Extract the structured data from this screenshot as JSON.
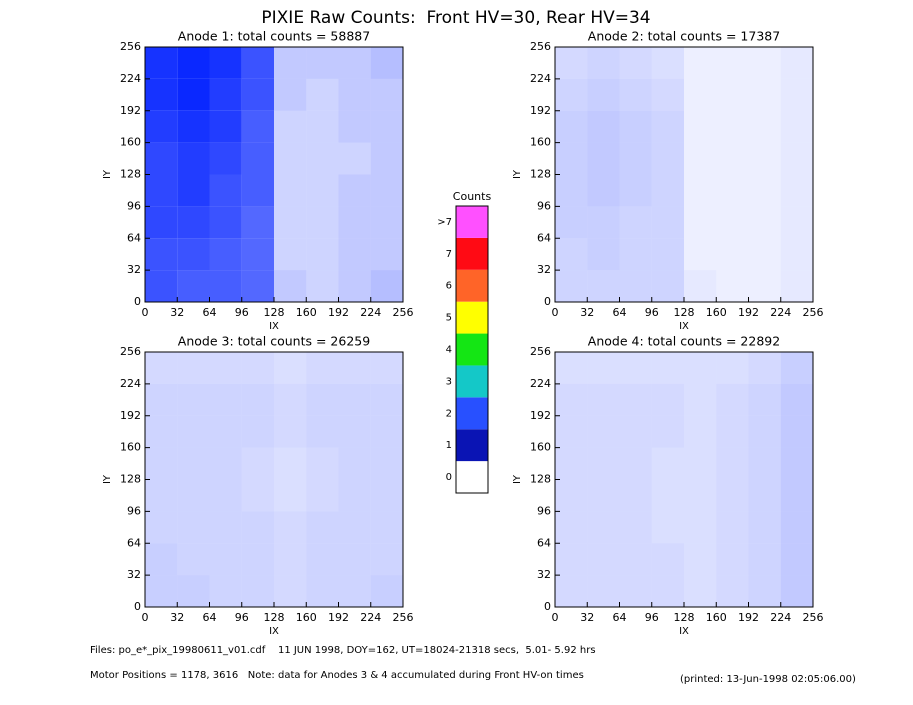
{
  "title": "PIXIE Raw Counts:  Front HV=30, Rear HV=34",
  "chart_data": [
    {
      "type": "heatmap",
      "title": "Anode 1: total counts = 58887",
      "xlabel": "IX",
      "ylabel": "IY",
      "xlim": [
        0,
        256
      ],
      "ylim": [
        0,
        256
      ],
      "xticks": [
        0,
        32,
        64,
        96,
        128,
        160,
        192,
        224,
        256
      ],
      "yticks": [
        0,
        32,
        64,
        96,
        128,
        160,
        192,
        224,
        256
      ],
      "color": "#0a28ff",
      "values": [
        [
          1.6,
          1.5,
          1.5,
          1.4,
          0.5,
          0.4,
          0.5,
          0.6
        ],
        [
          1.6,
          1.6,
          1.5,
          1.4,
          0.4,
          0.4,
          0.5,
          0.5
        ],
        [
          1.7,
          1.7,
          1.6,
          1.4,
          0.4,
          0.4,
          0.5,
          0.5
        ],
        [
          1.7,
          1.8,
          1.6,
          1.5,
          0.4,
          0.4,
          0.5,
          0.5
        ],
        [
          1.7,
          1.8,
          1.7,
          1.5,
          0.4,
          0.4,
          0.4,
          0.5
        ],
        [
          1.8,
          1.9,
          1.8,
          1.5,
          0.4,
          0.4,
          0.5,
          0.5
        ],
        [
          1.9,
          2.0,
          1.8,
          1.6,
          0.5,
          0.4,
          0.5,
          0.5
        ],
        [
          1.9,
          2.0,
          1.9,
          1.6,
          0.5,
          0.5,
          0.5,
          0.6
        ]
      ]
    },
    {
      "type": "heatmap",
      "title": "Anode 2: total counts = 17387",
      "xlabel": "IX",
      "ylabel": "IY",
      "xlim": [
        0,
        256
      ],
      "ylim": [
        0,
        256
      ],
      "xticks": [
        0,
        32,
        64,
        96,
        128,
        160,
        192,
        224,
        256
      ],
      "yticks": [
        0,
        32,
        64,
        96,
        128,
        160,
        192,
        224,
        256
      ],
      "color": "#0a28ff",
      "values": [
        [
          0.4,
          0.4,
          0.4,
          0.4,
          0.2,
          0.15,
          0.15,
          0.2
        ],
        [
          0.4,
          0.45,
          0.4,
          0.4,
          0.15,
          0.15,
          0.15,
          0.2
        ],
        [
          0.45,
          0.45,
          0.4,
          0.4,
          0.15,
          0.15,
          0.15,
          0.2
        ],
        [
          0.45,
          0.5,
          0.45,
          0.4,
          0.15,
          0.15,
          0.15,
          0.2
        ],
        [
          0.45,
          0.5,
          0.45,
          0.4,
          0.15,
          0.15,
          0.15,
          0.2
        ],
        [
          0.45,
          0.5,
          0.45,
          0.4,
          0.15,
          0.15,
          0.15,
          0.2
        ],
        [
          0.4,
          0.45,
          0.4,
          0.35,
          0.15,
          0.15,
          0.15,
          0.2
        ],
        [
          0.35,
          0.4,
          0.35,
          0.3,
          0.15,
          0.15,
          0.15,
          0.2
        ]
      ]
    },
    {
      "type": "heatmap",
      "title": "Anode 3: total counts = 26259",
      "xlabel": "IX",
      "ylabel": "IY",
      "xlim": [
        0,
        256
      ],
      "ylim": [
        0,
        256
      ],
      "xticks": [
        0,
        32,
        64,
        96,
        128,
        160,
        192,
        224,
        256
      ],
      "yticks": [
        0,
        32,
        64,
        96,
        128,
        160,
        192,
        224,
        256
      ],
      "color": "#0a28ff",
      "values": [
        [
          0.45,
          0.45,
          0.4,
          0.4,
          0.35,
          0.4,
          0.4,
          0.45
        ],
        [
          0.45,
          0.4,
          0.4,
          0.4,
          0.35,
          0.4,
          0.4,
          0.4
        ],
        [
          0.4,
          0.4,
          0.4,
          0.4,
          0.35,
          0.4,
          0.4,
          0.4
        ],
        [
          0.4,
          0.4,
          0.4,
          0.35,
          0.3,
          0.35,
          0.4,
          0.4
        ],
        [
          0.4,
          0.4,
          0.4,
          0.35,
          0.3,
          0.35,
          0.4,
          0.4
        ],
        [
          0.4,
          0.4,
          0.4,
          0.4,
          0.35,
          0.4,
          0.4,
          0.4
        ],
        [
          0.4,
          0.4,
          0.4,
          0.4,
          0.35,
          0.4,
          0.4,
          0.4
        ],
        [
          0.35,
          0.35,
          0.35,
          0.35,
          0.3,
          0.35,
          0.35,
          0.35
        ]
      ]
    },
    {
      "type": "heatmap",
      "title": "Anode 4: total counts = 22892",
      "xlabel": "IX",
      "ylabel": "IY",
      "xlim": [
        0,
        256
      ],
      "ylim": [
        0,
        256
      ],
      "xticks": [
        0,
        32,
        64,
        96,
        128,
        160,
        192,
        224,
        256
      ],
      "yticks": [
        0,
        32,
        64,
        96,
        128,
        160,
        192,
        224,
        256
      ],
      "color": "#0a28ff",
      "values": [
        [
          0.35,
          0.35,
          0.35,
          0.35,
          0.3,
          0.35,
          0.4,
          0.5
        ],
        [
          0.35,
          0.35,
          0.35,
          0.35,
          0.3,
          0.35,
          0.4,
          0.5
        ],
        [
          0.35,
          0.35,
          0.35,
          0.3,
          0.3,
          0.35,
          0.4,
          0.5
        ],
        [
          0.35,
          0.35,
          0.35,
          0.3,
          0.3,
          0.35,
          0.4,
          0.5
        ],
        [
          0.35,
          0.35,
          0.35,
          0.3,
          0.3,
          0.35,
          0.4,
          0.5
        ],
        [
          0.35,
          0.35,
          0.35,
          0.35,
          0.3,
          0.35,
          0.4,
          0.5
        ],
        [
          0.35,
          0.35,
          0.35,
          0.35,
          0.3,
          0.35,
          0.4,
          0.5
        ],
        [
          0.3,
          0.3,
          0.3,
          0.3,
          0.3,
          0.3,
          0.35,
          0.45
        ]
      ]
    }
  ],
  "colorbar": {
    "title": "Counts",
    "labels": [
      "0",
      "1",
      "2",
      "3",
      "4",
      "5",
      "6",
      "7",
      ">7"
    ],
    "colors": [
      "#ffffff",
      "#0a14b4",
      "#2850ff",
      "#14c8c8",
      "#14e614",
      "#ffff00",
      "#ff6428",
      "#ff0a14",
      "#ff50ff"
    ]
  },
  "footer": {
    "files": "Files: po_e*_pix_19980611_v01.cdf    11 JUN 1998, DOY=162, UT=18024-21318 secs,  5.01- 5.92 hrs",
    "motor": "Motor Positions = 1178, 3616   Note: data for Anodes 3 & 4 accumulated during Front HV-on times",
    "printed": "(printed: 13-Jun-1998 02:05:06.00)"
  }
}
